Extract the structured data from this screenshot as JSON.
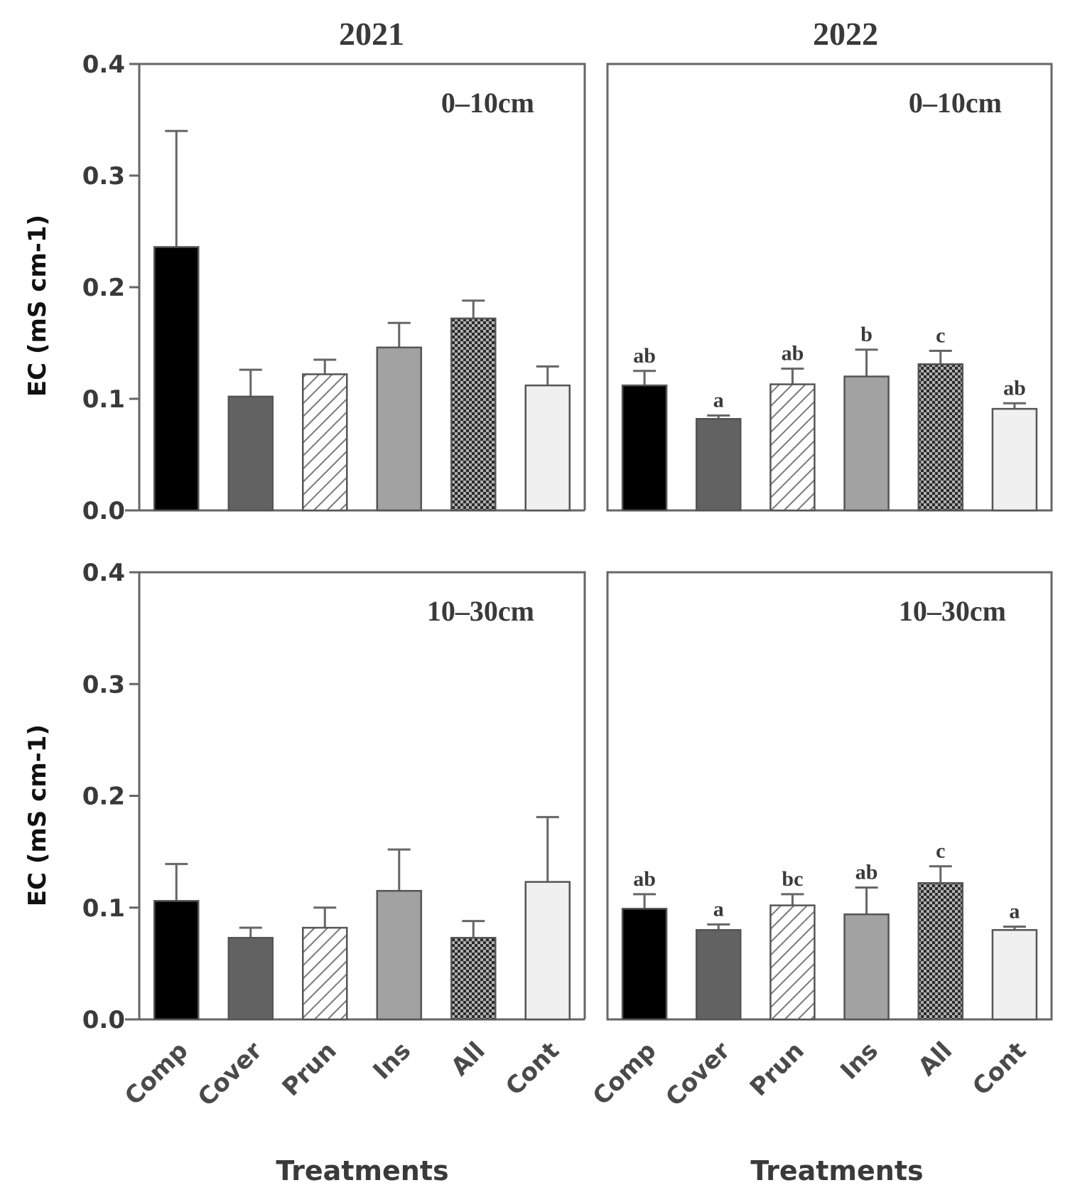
{
  "chart_data": [
    {
      "type": "bar",
      "title": "2021",
      "panel_label": "0–10cm",
      "ylabel": "EC (mS cm-1)",
      "xlabel": "",
      "yticks": [
        "0.0",
        "0.1",
        "0.2",
        "0.3",
        "0.4"
      ],
      "ylim": [
        0,
        0.4
      ],
      "categories": [
        "Comp",
        "Cover",
        "Prun",
        "Ins",
        "All",
        "Cont"
      ],
      "values": [
        0.236,
        0.102,
        0.122,
        0.146,
        0.172,
        0.112
      ],
      "errors": [
        0.104,
        0.024,
        0.013,
        0.022,
        0.016,
        0.017
      ],
      "significance": []
    },
    {
      "type": "bar",
      "title": "2022",
      "panel_label": "0–10cm",
      "ylabel": "",
      "xlabel": "",
      "yticks": [],
      "ylim": [
        0,
        0.4
      ],
      "categories": [
        "Comp",
        "Cover",
        "Prun",
        "Ins",
        "All",
        "Cont"
      ],
      "values": [
        0.112,
        0.082,
        0.113,
        0.12,
        0.131,
        0.091
      ],
      "errors": [
        0.013,
        0.003,
        0.014,
        0.024,
        0.012,
        0.005
      ],
      "significance": [
        "ab",
        "a",
        "ab",
        "b",
        "c",
        "ab"
      ]
    },
    {
      "type": "bar",
      "title": "",
      "panel_label": "10–30cm",
      "ylabel": "EC (mS cm-1)",
      "xlabel": "Treatments",
      "yticks": [
        "0.0",
        "0.1",
        "0.2",
        "0.3",
        "0.4"
      ],
      "ylim": [
        0,
        0.4
      ],
      "categories": [
        "Comp",
        "Cover",
        "Prun",
        "Ins",
        "All",
        "Cont"
      ],
      "values": [
        0.106,
        0.073,
        0.082,
        0.115,
        0.073,
        0.123
      ],
      "errors": [
        0.033,
        0.009,
        0.018,
        0.037,
        0.015,
        0.058
      ],
      "significance": []
    },
    {
      "type": "bar",
      "title": "",
      "panel_label": "10–30cm",
      "ylabel": "",
      "xlabel": "Treatments",
      "yticks": [],
      "ylim": [
        0,
        0.4
      ],
      "categories": [
        "Comp",
        "Cover",
        "Prun",
        "Ins",
        "All",
        "Cont"
      ],
      "values": [
        0.099,
        0.08,
        0.102,
        0.094,
        0.122,
        0.08
      ],
      "errors": [
        0.013,
        0.005,
        0.01,
        0.024,
        0.015,
        0.003
      ],
      "significance": [
        "ab",
        "a",
        "bc",
        "ab",
        "c",
        "a"
      ]
    }
  ],
  "fills": [
    "#000000",
    "#626262",
    "hatch",
    "#a2a2a2",
    "checker",
    "#f0f0f0"
  ],
  "fill_names": [
    "solid-black",
    "dark-gray",
    "diagonal-hatch",
    "medium-gray",
    "checker",
    "light-gray"
  ],
  "grid": false
}
